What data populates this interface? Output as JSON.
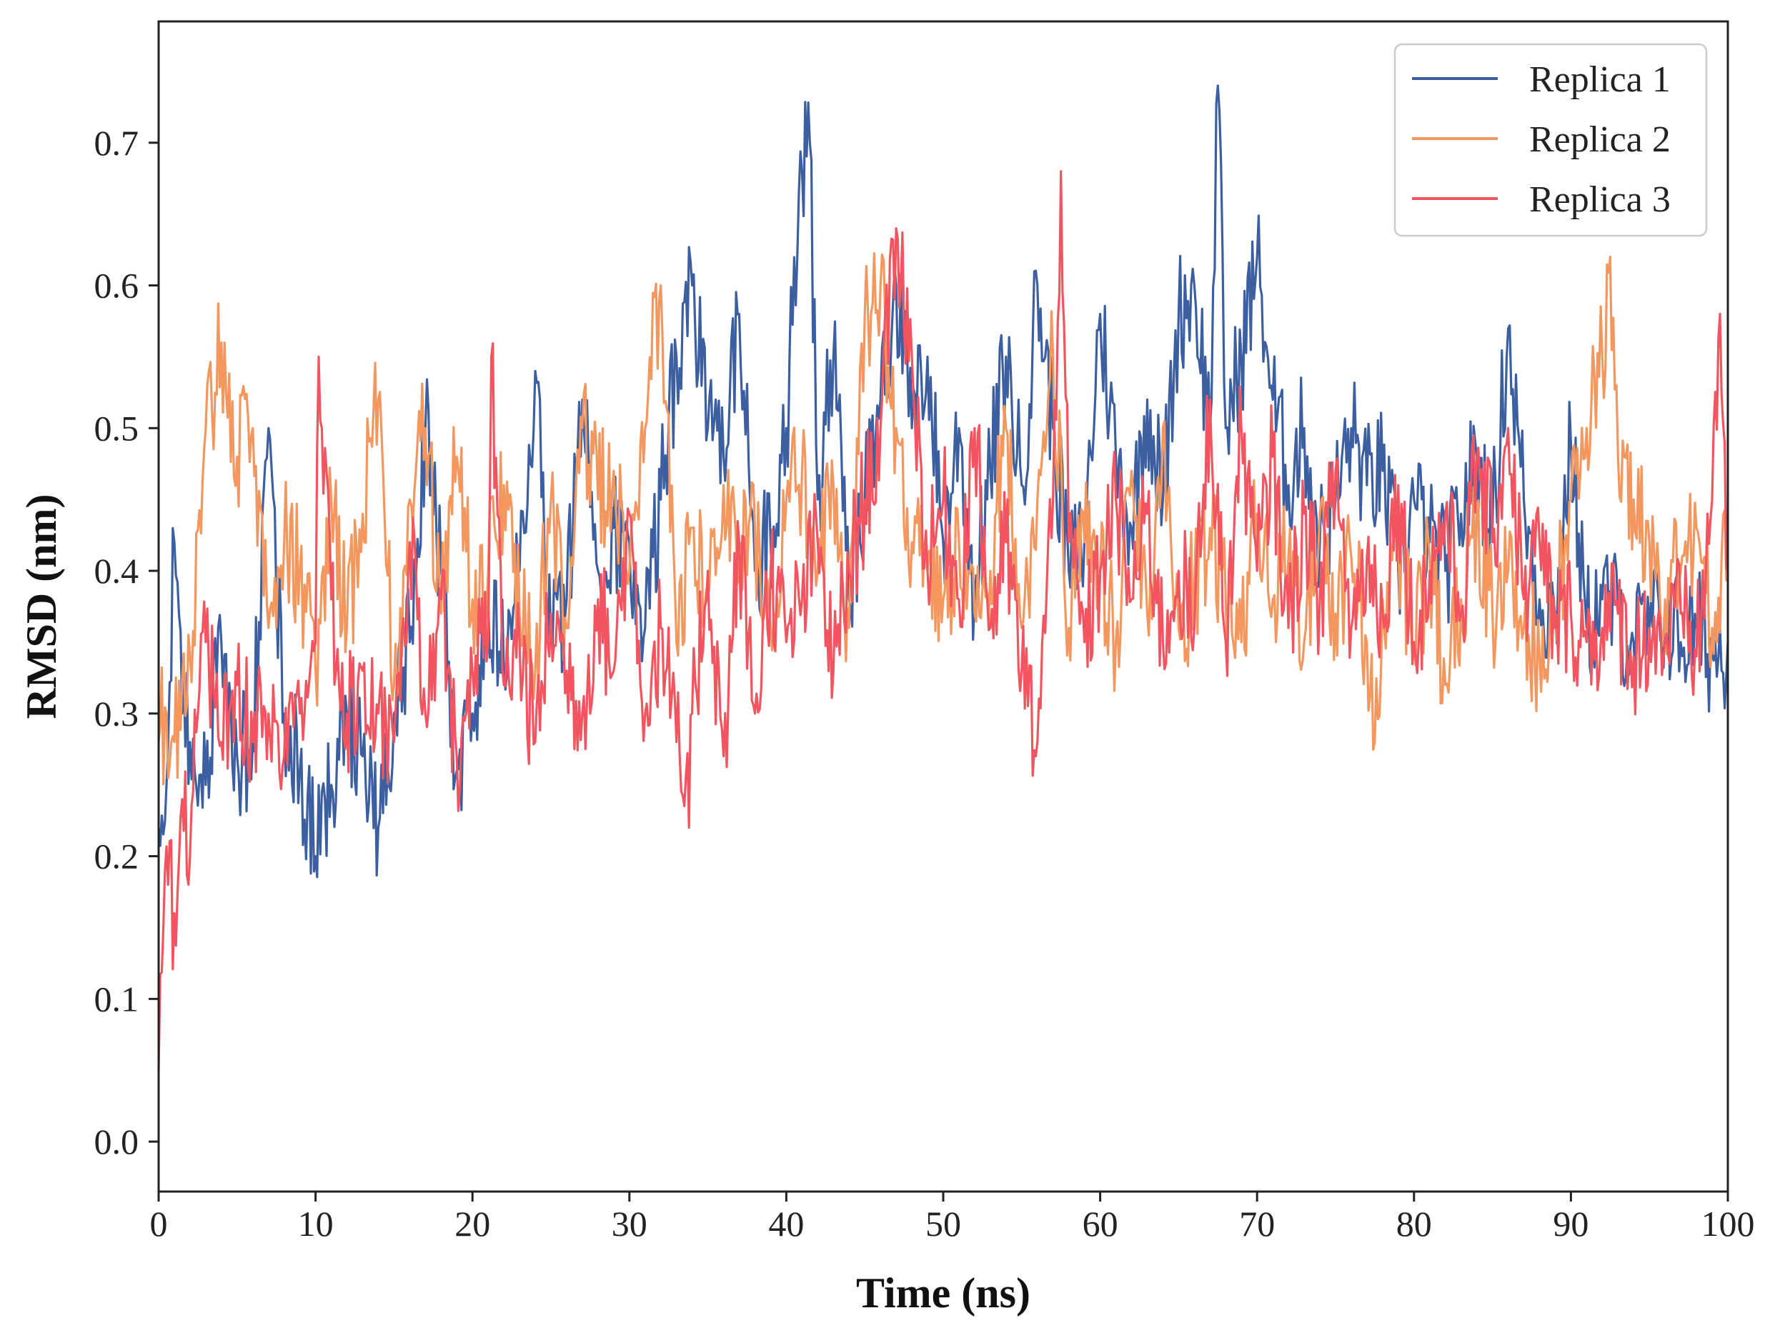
{
  "chart_data": {
    "type": "line",
    "title": "",
    "xlabel": "Time (ns)",
    "ylabel": "RMSD (nm)",
    "xlim": [
      0,
      100
    ],
    "ylim": [
      -0.035,
      0.785
    ],
    "xticks": [
      0,
      10,
      20,
      30,
      40,
      50,
      60,
      70,
      80,
      90,
      100
    ],
    "xtick_labels": [
      "0",
      "10",
      "20",
      "30",
      "40",
      "50",
      "60",
      "70",
      "80",
      "90",
      "100"
    ],
    "yticks": [
      0.0,
      0.1,
      0.2,
      0.3,
      0.4,
      0.5,
      0.6,
      0.7
    ],
    "ytick_labels": [
      "0.0",
      "0.1",
      "0.2",
      "0.3",
      "0.4",
      "0.5",
      "0.6",
      "0.7"
    ],
    "grid": false,
    "legend_position": "top-right",
    "series": [
      {
        "name": "Replica 1",
        "color": "#3B5FA0",
        "x": [
          0,
          0.5,
          1,
          1.5,
          2,
          3,
          4,
          5,
          6,
          7,
          8,
          9,
          10,
          11,
          12,
          13,
          14,
          15,
          16,
          17,
          18,
          19,
          20,
          21,
          22,
          23,
          24,
          25,
          26,
          27,
          28,
          29,
          30,
          31,
          32,
          33,
          34,
          35,
          36,
          37,
          38,
          39,
          40,
          41,
          41.5,
          42,
          43,
          44,
          45,
          46,
          47,
          48,
          49,
          50,
          51,
          52,
          53,
          54,
          55,
          56,
          57,
          58,
          59,
          60,
          61,
          62,
          63,
          64,
          65,
          66,
          67,
          67.5,
          68,
          69,
          70,
          71,
          72,
          73,
          74,
          75,
          76,
          77,
          78,
          79,
          80,
          81,
          82,
          83,
          84,
          85,
          86,
          87,
          88,
          89,
          90,
          91,
          92,
          93,
          94,
          95,
          96,
          97,
          98,
          99,
          100
        ],
        "y": [
          0.22,
          0.25,
          0.42,
          0.3,
          0.28,
          0.25,
          0.35,
          0.27,
          0.28,
          0.5,
          0.3,
          0.26,
          0.2,
          0.25,
          0.3,
          0.27,
          0.22,
          0.3,
          0.35,
          0.5,
          0.4,
          0.26,
          0.3,
          0.38,
          0.33,
          0.4,
          0.54,
          0.35,
          0.38,
          0.52,
          0.4,
          0.43,
          0.42,
          0.36,
          0.45,
          0.55,
          0.6,
          0.5,
          0.48,
          0.58,
          0.4,
          0.42,
          0.5,
          0.68,
          0.7,
          0.45,
          0.55,
          0.38,
          0.45,
          0.52,
          0.6,
          0.5,
          0.55,
          0.42,
          0.5,
          0.38,
          0.47,
          0.55,
          0.46,
          0.6,
          0.5,
          0.4,
          0.42,
          0.58,
          0.48,
          0.43,
          0.52,
          0.45,
          0.58,
          0.6,
          0.5,
          0.74,
          0.5,
          0.55,
          0.62,
          0.52,
          0.46,
          0.5,
          0.42,
          0.45,
          0.5,
          0.46,
          0.47,
          0.4,
          0.45,
          0.42,
          0.4,
          0.44,
          0.48,
          0.43,
          0.57,
          0.45,
          0.38,
          0.37,
          0.49,
          0.36,
          0.38,
          0.37,
          0.35,
          0.36,
          0.37,
          0.35,
          0.36,
          0.34,
          0.35
        ]
      },
      {
        "name": "Replica 2",
        "color": "#F4975F",
        "x": [
          0,
          0.5,
          1,
          2,
          3,
          4,
          5,
          6,
          7,
          8,
          9,
          10,
          11,
          12,
          13,
          14,
          15,
          16,
          17,
          18,
          19,
          20,
          21,
          22,
          23,
          24,
          25,
          26,
          27,
          28,
          29,
          30,
          31,
          32,
          33,
          34,
          35,
          36,
          37,
          38,
          39,
          40,
          41,
          42,
          43,
          44,
          45,
          46,
          47,
          48,
          49,
          50,
          51,
          52,
          53,
          54,
          55,
          56,
          57,
          58,
          59,
          60,
          61,
          62,
          63,
          64,
          65,
          66,
          67,
          68,
          69,
          70,
          71,
          72,
          73,
          74,
          75,
          76,
          77,
          77.5,
          78,
          79,
          80,
          81,
          82,
          83,
          84,
          85,
          86,
          87,
          88,
          89,
          90,
          91,
          92,
          92.5,
          93,
          94,
          95,
          96,
          97,
          98,
          99,
          100
        ],
        "y": [
          0.28,
          0.3,
          0.28,
          0.34,
          0.5,
          0.56,
          0.48,
          0.5,
          0.36,
          0.42,
          0.4,
          0.33,
          0.45,
          0.36,
          0.44,
          0.52,
          0.32,
          0.45,
          0.5,
          0.37,
          0.48,
          0.38,
          0.4,
          0.46,
          0.37,
          0.33,
          0.45,
          0.36,
          0.5,
          0.45,
          0.47,
          0.4,
          0.5,
          0.6,
          0.35,
          0.43,
          0.38,
          0.46,
          0.41,
          0.43,
          0.36,
          0.45,
          0.47,
          0.4,
          0.46,
          0.36,
          0.58,
          0.6,
          0.5,
          0.42,
          0.4,
          0.38,
          0.42,
          0.37,
          0.4,
          0.5,
          0.36,
          0.45,
          0.55,
          0.36,
          0.42,
          0.4,
          0.35,
          0.47,
          0.37,
          0.5,
          0.36,
          0.39,
          0.43,
          0.38,
          0.35,
          0.44,
          0.38,
          0.41,
          0.35,
          0.44,
          0.37,
          0.41,
          0.35,
          0.28,
          0.38,
          0.42,
          0.35,
          0.41,
          0.32,
          0.38,
          0.44,
          0.37,
          0.4,
          0.36,
          0.34,
          0.37,
          0.45,
          0.5,
          0.55,
          0.62,
          0.48,
          0.45,
          0.42,
          0.38,
          0.4,
          0.43,
          0.36,
          0.42
        ]
      },
      {
        "name": "Replica 3",
        "color": "#F25560",
        "x": [
          0,
          0.3,
          0.6,
          1,
          1.5,
          2,
          2.5,
          3,
          4,
          5,
          6,
          7,
          8,
          9,
          10,
          10.2,
          11,
          12,
          13,
          14,
          15,
          16,
          17,
          18,
          19,
          20,
          21,
          21.2,
          22,
          23,
          24,
          25,
          26,
          27,
          28,
          29,
          30,
          31,
          32,
          33,
          33.8,
          34,
          35,
          36,
          37,
          38,
          39,
          40,
          41,
          42,
          43,
          44,
          45,
          46,
          47,
          48,
          49,
          50,
          51,
          52,
          53,
          54,
          55,
          56,
          57,
          57.5,
          58,
          59,
          60,
          61,
          62,
          63,
          64,
          65,
          66,
          67,
          68,
          69,
          70,
          71,
          72,
          73,
          74,
          75,
          76,
          77,
          78,
          79,
          80,
          81,
          82,
          83,
          84,
          85,
          86,
          87,
          88,
          89,
          90,
          91,
          92,
          93,
          94,
          95,
          96,
          97,
          98,
          99,
          99.5,
          100
        ],
        "y": [
          0.05,
          0.15,
          0.18,
          0.16,
          0.24,
          0.2,
          0.3,
          0.35,
          0.28,
          0.32,
          0.28,
          0.3,
          0.27,
          0.3,
          0.35,
          0.55,
          0.38,
          0.3,
          0.33,
          0.3,
          0.28,
          0.42,
          0.3,
          0.38,
          0.27,
          0.33,
          0.35,
          0.55,
          0.32,
          0.35,
          0.28,
          0.37,
          0.33,
          0.3,
          0.38,
          0.33,
          0.44,
          0.3,
          0.36,
          0.28,
          0.22,
          0.3,
          0.4,
          0.27,
          0.42,
          0.3,
          0.4,
          0.35,
          0.38,
          0.42,
          0.33,
          0.4,
          0.45,
          0.5,
          0.64,
          0.55,
          0.4,
          0.45,
          0.38,
          0.5,
          0.36,
          0.42,
          0.33,
          0.28,
          0.45,
          0.68,
          0.42,
          0.35,
          0.4,
          0.45,
          0.38,
          0.44,
          0.35,
          0.4,
          0.36,
          0.52,
          0.35,
          0.5,
          0.4,
          0.48,
          0.36,
          0.44,
          0.38,
          0.47,
          0.36,
          0.41,
          0.37,
          0.46,
          0.35,
          0.4,
          0.44,
          0.37,
          0.48,
          0.42,
          0.5,
          0.38,
          0.42,
          0.36,
          0.37,
          0.35,
          0.36,
          0.37,
          0.34,
          0.36,
          0.35,
          0.37,
          0.34,
          0.45,
          0.58,
          0.4
        ]
      }
    ]
  }
}
